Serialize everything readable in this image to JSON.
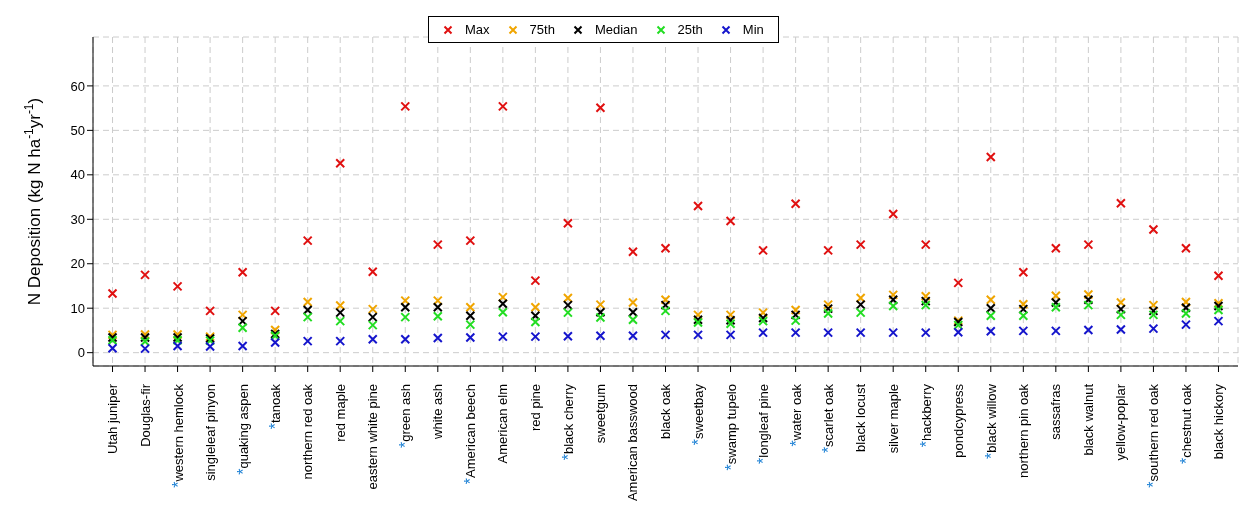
{
  "chart_data": {
    "type": "scatter",
    "ylabel": "N Deposition (kg N ha$^{-1}$yr$^{-1}$)",
    "categories": [
      "Utah juniper",
      "Douglas-fir",
      "*western hemlock",
      "singleleaf pinyon",
      "*quaking aspen",
      "*tanoak",
      "northern red oak",
      "red maple",
      "eastern white pine",
      "*green ash",
      "white ash",
      "*American beech",
      "American elm",
      "red pine",
      "*black cherry",
      "sweetgum",
      "American basswood",
      "black oak",
      "*sweetbay",
      "*swamp tupelo",
      "*longleaf pine",
      "*water oak",
      "*scarlet oak",
      "black locust",
      "silver maple",
      "*hackberry",
      "pondcypress",
      "*black willow",
      "northern pin oak",
      "sassafras",
      "black walnut",
      "yellow-poplar",
      "*southern red oak",
      "*chestnut oak",
      "black hickory"
    ],
    "series": [
      {
        "name": "Max",
        "color": "#e01010",
        "values": [
          13.3,
          17.5,
          14.9,
          9.4,
          18.1,
          9.4,
          25.2,
          42.6,
          18.2,
          55.4,
          24.3,
          25.2,
          55.4,
          16.2,
          29.1,
          55.1,
          22.7,
          23.5,
          33.0,
          29.6,
          23.0,
          33.5,
          23.0,
          24.3,
          31.2,
          24.3,
          15.7,
          44.0,
          18.1,
          23.5,
          24.3,
          33.6,
          27.7,
          23.5,
          17.3
        ]
      },
      {
        "name": "75th",
        "color": "#f0a500",
        "values": [
          4.0,
          4.1,
          4.1,
          3.6,
          8.5,
          5.1,
          11.4,
          10.6,
          9.8,
          11.7,
          11.7,
          10.2,
          12.5,
          10.2,
          12.3,
          10.8,
          11.3,
          11.9,
          8.5,
          8.5,
          9.0,
          9.6,
          10.8,
          12.3,
          13.0,
          12.7,
          7.2,
          11.9,
          10.9,
          12.8,
          13.1,
          11.3,
          10.7,
          11.4,
          11.1
        ]
      },
      {
        "name": "Median",
        "color": "#000000",
        "values": [
          3.4,
          3.4,
          3.4,
          3.2,
          7.1,
          4.2,
          9.6,
          9.0,
          8.0,
          10.2,
          10.2,
          8.3,
          11.0,
          8.3,
          10.7,
          9.1,
          9.1,
          10.7,
          7.4,
          7.3,
          7.8,
          8.5,
          9.9,
          10.8,
          11.9,
          11.6,
          6.9,
          10.0,
          9.8,
          11.3,
          11.9,
          9.8,
          9.4,
          10.1,
          10.5
        ]
      },
      {
        "name": "25th",
        "color": "#22dd22",
        "values": [
          2.8,
          2.5,
          2.8,
          2.7,
          5.6,
          3.8,
          8.0,
          7.1,
          6.2,
          8.0,
          8.2,
          6.3,
          9.1,
          6.9,
          9.0,
          7.9,
          7.4,
          9.4,
          6.8,
          6.5,
          7.1,
          7.2,
          8.8,
          9.0,
          10.5,
          10.7,
          6.2,
          8.3,
          8.3,
          10.2,
          10.7,
          8.5,
          8.5,
          8.8,
          9.6
        ]
      },
      {
        "name": "Min",
        "color": "#1515cc",
        "values": [
          1.0,
          0.9,
          1.5,
          1.4,
          1.5,
          2.3,
          2.6,
          2.6,
          3.0,
          3.0,
          3.3,
          3.4,
          3.6,
          3.6,
          3.7,
          3.8,
          3.8,
          4.0,
          4.0,
          4.0,
          4.5,
          4.5,
          4.5,
          4.5,
          4.5,
          4.5,
          4.6,
          4.8,
          4.9,
          4.9,
          5.1,
          5.2,
          5.4,
          6.3,
          7.1
        ]
      }
    ],
    "ylim": [
      -3,
      71
    ],
    "yticks": [
      0,
      10,
      20,
      30,
      40,
      50,
      60
    ],
    "grid": true,
    "legend": "top",
    "marker": "cross"
  }
}
